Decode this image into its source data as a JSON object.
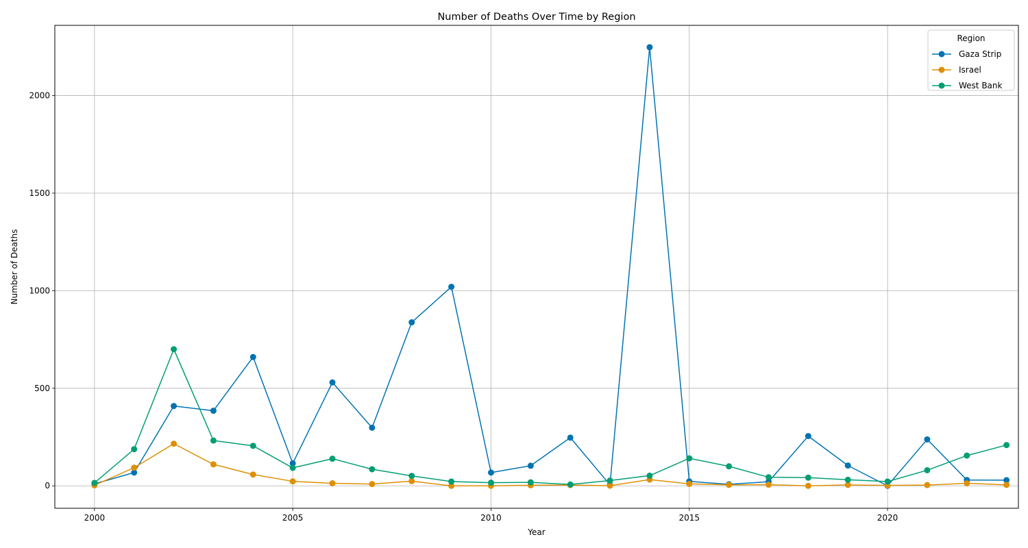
{
  "chart_data": {
    "type": "line",
    "title": "Number of Deaths Over Time by Region",
    "xlabel": "Year",
    "ylabel": "Number of Deaths",
    "xlim": [
      1999.0,
      2023.3
    ],
    "ylim": [
      -115,
      2360
    ],
    "xticks": [
      2000,
      2005,
      2010,
      2015,
      2020
    ],
    "yticks": [
      0,
      500,
      1000,
      1500,
      2000
    ],
    "grid": true,
    "legend": {
      "title": "Region",
      "placement": "top-right"
    },
    "x": [
      2000,
      2001,
      2002,
      2003,
      2004,
      2005,
      2006,
      2007,
      2008,
      2009,
      2010,
      2011,
      2012,
      2013,
      2014,
      2015,
      2016,
      2017,
      2018,
      2019,
      2020,
      2021,
      2022,
      2023
    ],
    "series": [
      {
        "name": "Gaza Strip",
        "color": "#0173b2",
        "values": [
          10,
          68,
          409,
          385,
          660,
          115,
          530,
          298,
          838,
          1020,
          68,
          103,
          247,
          5,
          2248,
          23,
          8,
          21,
          255,
          104,
          0,
          238,
          30,
          29
        ]
      },
      {
        "name": "Israel",
        "color": "#de8f05",
        "values": [
          3,
          93,
          216,
          110,
          58,
          23,
          13,
          9,
          24,
          0,
          0,
          3,
          4,
          1,
          32,
          10,
          5,
          6,
          0,
          5,
          2,
          4,
          13,
          5
        ]
      },
      {
        "name": "West Bank",
        "color": "#029e73",
        "values": [
          15,
          188,
          700,
          232,
          205,
          92,
          139,
          85,
          51,
          22,
          16,
          18,
          7,
          27,
          52,
          141,
          100,
          44,
          42,
          31,
          22,
          80,
          155,
          209
        ]
      }
    ]
  }
}
